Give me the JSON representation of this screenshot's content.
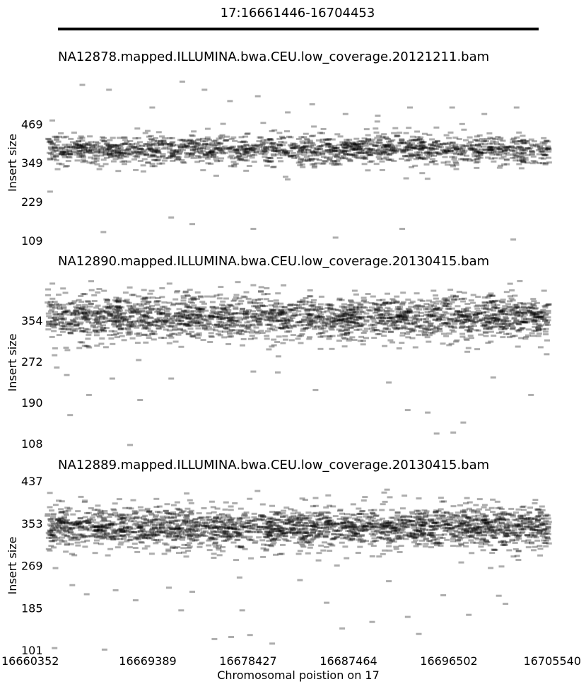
{
  "region_label": "17:16661446-16704453",
  "xlabel": "Chromosomal poistion on 17",
  "xlim": [
    16660352,
    16705540
  ],
  "xticks": [
    16660352,
    16669389,
    16678427,
    16687464,
    16696502,
    16705540
  ],
  "xtick_labels": [
    "16660352",
    "16669389",
    "16678427",
    "16687464",
    "16696502",
    "16705540"
  ],
  "colors": {
    "read_marker": "#000000",
    "region_bar": "#000000"
  },
  "chart_data": [
    {
      "type": "scatter",
      "title": "NA12878.mapped.ILLUMINA.bwa.CEU.low_coverage.20121211.bam",
      "ylabel": "Insert size",
      "yticks": [
        109,
        229,
        349,
        469
      ],
      "ytick_labels": [
        "109",
        "229",
        "349",
        "469"
      ],
      "ylim": [
        109,
        590
      ],
      "typical_insert_center": 390,
      "typical_insert_spread": 40,
      "approx_read_count": 1700,
      "sparse_points": [
        [
          16660800,
          480
        ],
        [
          16663500,
          590
        ],
        [
          16665900,
          575
        ],
        [
          16669800,
          520
        ],
        [
          16672500,
          600
        ],
        [
          16674500,
          575
        ],
        [
          16676800,
          540
        ],
        [
          16679300,
          555
        ],
        [
          16682000,
          505
        ],
        [
          16684200,
          530
        ],
        [
          16687200,
          500
        ],
        [
          16690100,
          495
        ],
        [
          16693000,
          520
        ],
        [
          16696800,
          520
        ],
        [
          16699700,
          500
        ],
        [
          16702600,
          520
        ],
        [
          16665400,
          135
        ],
        [
          16671500,
          180
        ],
        [
          16673400,
          160
        ],
        [
          16678900,
          145
        ],
        [
          16686300,
          118
        ],
        [
          16692300,
          145
        ],
        [
          16702300,
          112
        ],
        [
          16660600,
          260
        ]
      ]
    },
    {
      "type": "scatter",
      "title": "NA12890.mapped.ILLUMINA.bwa.CEU.low_coverage.20130415.bam",
      "ylabel": "Insert size",
      "yticks": [
        108,
        190,
        272,
        354
      ],
      "ytick_labels": [
        "108",
        "190",
        "272",
        "354"
      ],
      "ylim": [
        108,
        432
      ],
      "typical_insert_center": 360,
      "typical_insert_spread": 38,
      "approx_read_count": 2300,
      "sparse_points": [
        [
          16661200,
          260
        ],
        [
          16662100,
          245
        ],
        [
          16662400,
          165
        ],
        [
          16664100,
          205
        ],
        [
          16666200,
          238
        ],
        [
          16667800,
          105
        ],
        [
          16668700,
          195
        ],
        [
          16671500,
          238
        ],
        [
          16678900,
          252
        ],
        [
          16681100,
          250
        ],
        [
          16684500,
          215
        ],
        [
          16692800,
          175
        ],
        [
          16694600,
          170
        ],
        [
          16695400,
          128
        ],
        [
          16697800,
          150
        ],
        [
          16700500,
          240
        ],
        [
          16703900,
          205
        ],
        [
          16696900,
          130
        ],
        [
          16691100,
          230
        ]
      ]
    },
    {
      "type": "scatter",
      "title": "NA12889.mapped.ILLUMINA.bwa.CEU.low_coverage.20130415.bam",
      "ylabel": "Insert size",
      "yticks": [
        101,
        185,
        269,
        353,
        437
      ],
      "ytick_labels": [
        "101",
        "185",
        "269",
        "353",
        "437"
      ],
      "ylim": [
        101,
        437
      ],
      "typical_insert_center": 345,
      "typical_insert_spread": 36,
      "approx_read_count": 2400,
      "sparse_points": [
        [
          16661000,
          105
        ],
        [
          16662600,
          230
        ],
        [
          16663900,
          212
        ],
        [
          16665500,
          102
        ],
        [
          16666500,
          220
        ],
        [
          16668300,
          200
        ],
        [
          16671300,
          225
        ],
        [
          16672400,
          180
        ],
        [
          16673400,
          217
        ],
        [
          16675400,
          123
        ],
        [
          16676900,
          127
        ],
        [
          16677900,
          180
        ],
        [
          16678600,
          131
        ],
        [
          16680600,
          114
        ],
        [
          16683100,
          240
        ],
        [
          16685500,
          195
        ],
        [
          16686900,
          144
        ],
        [
          16689600,
          157
        ],
        [
          16691100,
          238
        ],
        [
          16692800,
          167
        ],
        [
          16693800,
          133
        ],
        [
          16696000,
          210
        ],
        [
          16698300,
          171
        ],
        [
          16701000,
          209
        ],
        [
          16701600,
          193
        ]
      ]
    }
  ]
}
